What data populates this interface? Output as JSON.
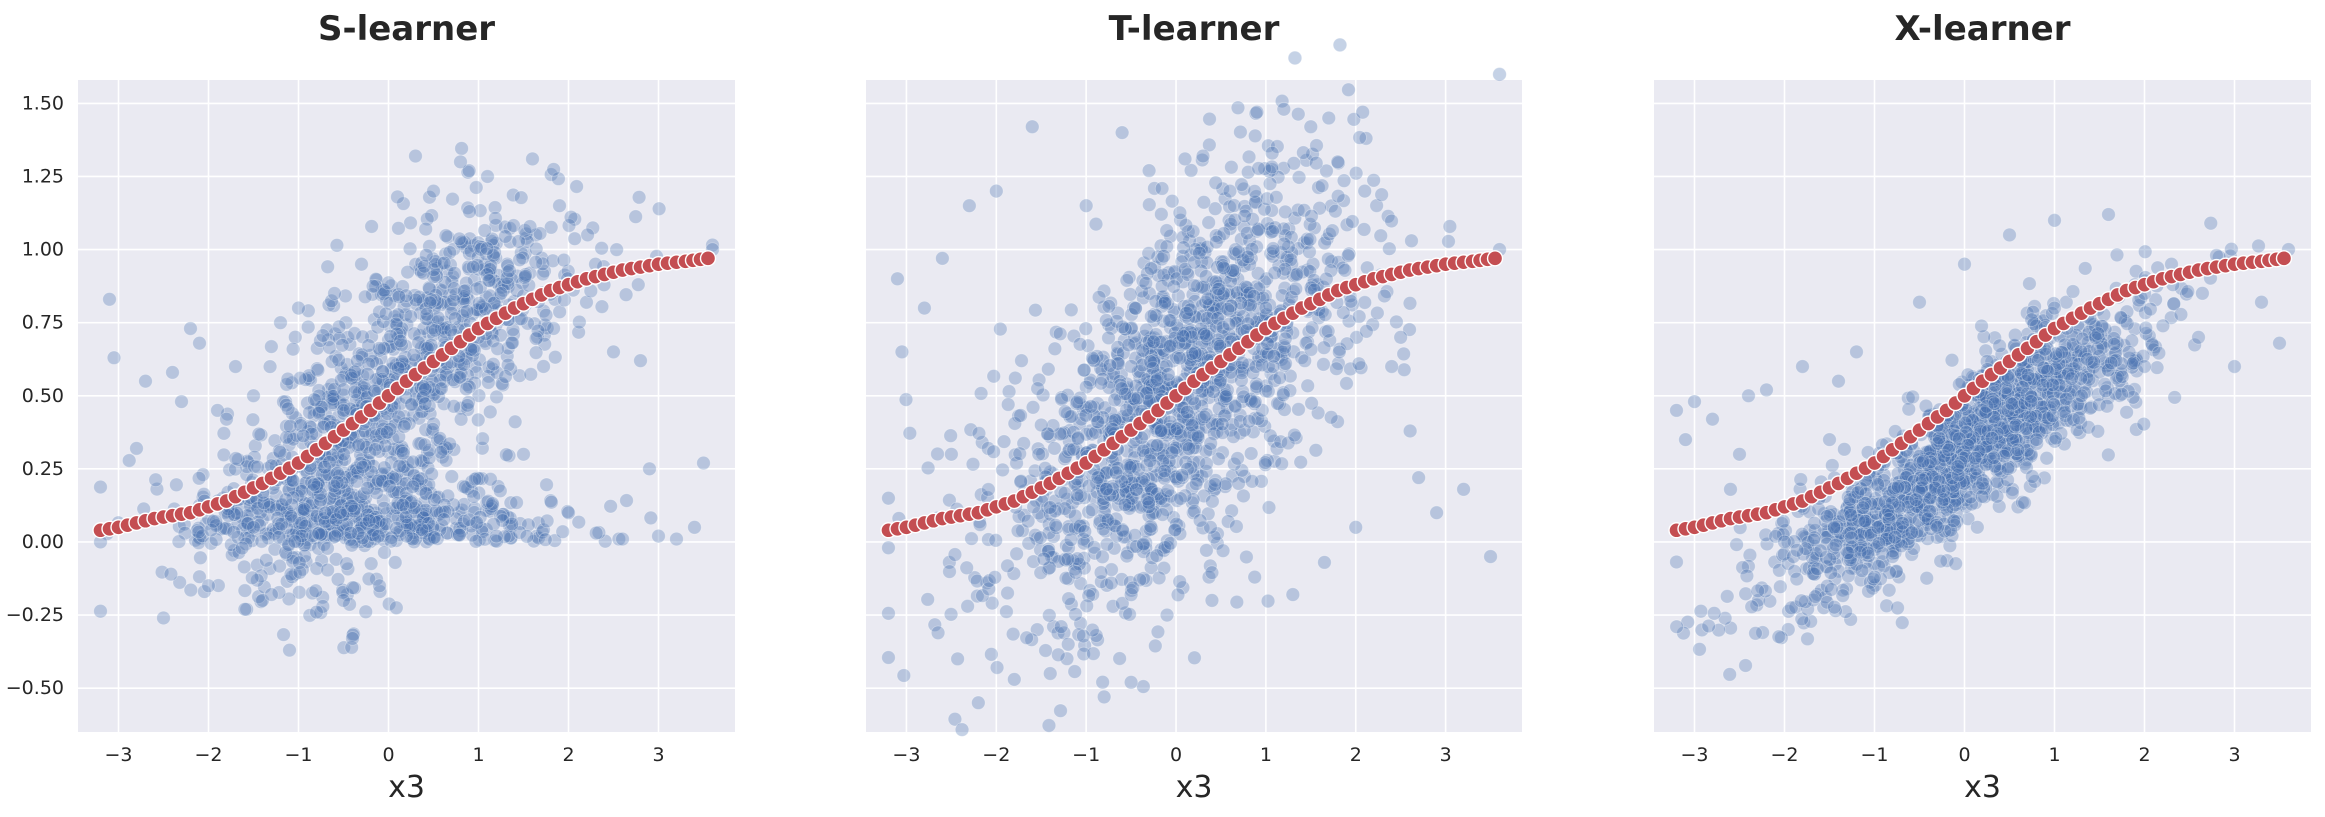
{
  "chart_data": [
    {
      "type": "scatter",
      "title": "S-learner",
      "xlabel": "x3",
      "ylabel": "",
      "xlim": [
        -3.45,
        3.85
      ],
      "ylim": [
        -0.65,
        1.58
      ],
      "xticks": [
        -3,
        -2,
        -1,
        0,
        1,
        2,
        3
      ],
      "xtick_labels": [
        "−3",
        "−2",
        "−1",
        "0",
        "1",
        "2",
        "3"
      ],
      "yticks": [
        -0.5,
        -0.25,
        0.0,
        0.25,
        0.5,
        0.75,
        1.0,
        1.25,
        1.5
      ],
      "ytick_labels": [
        "−0.50",
        "−0.25",
        "0.00",
        "0.25",
        "0.50",
        "0.75",
        "1.00",
        "1.25",
        "1.50"
      ],
      "grid": true,
      "series": [
        {
          "role": "estimated",
          "color": "#4c72b0",
          "points": [
            [
              -3.2,
              0.0
            ],
            [
              -3.1,
              0.83
            ],
            [
              -3.05,
              0.63
            ],
            [
              -2.8,
              0.32
            ],
            [
              -2.7,
              0.55
            ],
            [
              -2.5,
              -0.26
            ],
            [
              -2.4,
              0.58
            ],
            [
              -2.3,
              0.48
            ],
            [
              -2.2,
              0.73
            ],
            [
              -2.1,
              0.68
            ],
            [
              -2.0,
              -0.15
            ],
            [
              -1.9,
              0.45
            ],
            [
              -1.8,
              0.42
            ],
            [
              -1.7,
              0.6
            ],
            [
              -1.5,
              0.5
            ],
            [
              -1.4,
              -0.2
            ],
            [
              -1.3,
              -0.18
            ],
            [
              -1.2,
              0.75
            ],
            [
              -1.1,
              -0.37
            ],
            [
              -1.0,
              0.8
            ],
            [
              -0.8,
              -0.24
            ],
            [
              -0.6,
              0.85
            ],
            [
              -0.5,
              -0.2
            ],
            [
              -0.4,
              -0.33
            ],
            [
              -0.3,
              0.95
            ],
            [
              -0.1,
              -0.15
            ],
            [
              0.1,
              1.18
            ],
            [
              0.3,
              1.32
            ],
            [
              0.5,
              1.2
            ],
            [
              0.8,
              1.3
            ],
            [
              1.1,
              1.25
            ],
            [
              1.6,
              1.31
            ],
            [
              1.9,
              1.15
            ],
            [
              2.3,
              0.95
            ],
            [
              2.5,
              0.65
            ],
            [
              2.8,
              0.62
            ],
            [
              2.9,
              0.25
            ],
            [
              3.0,
              0.02
            ],
            [
              3.2,
              0.01
            ],
            [
              3.4,
              0.05
            ],
            [
              3.5,
              0.27
            ],
            [
              3.6,
              1.0
            ],
            [
              -0.5,
              0.45
            ],
            [
              0.0,
              0.5
            ],
            [
              0.5,
              0.6
            ],
            [
              1.0,
              0.7
            ],
            [
              1.5,
              0.3
            ],
            [
              2.0,
              0.1
            ],
            [
              -1.5,
              0.05
            ],
            [
              -2.2,
              0.1
            ],
            [
              0.2,
              0.02
            ],
            [
              1.2,
              0.02
            ],
            [
              2.6,
              0.01
            ]
          ]
        },
        {
          "role": "true",
          "color": "#c44e52",
          "points": [
            [
              -3.2,
              0.04
            ],
            [
              -3.0,
              0.05
            ],
            [
              -2.6,
              0.08
            ],
            [
              -2.2,
              0.1
            ],
            [
              -1.8,
              0.14
            ],
            [
              -1.4,
              0.2
            ],
            [
              -1.0,
              0.27
            ],
            [
              -0.6,
              0.36
            ],
            [
              -0.2,
              0.45
            ],
            [
              0.0,
              0.5
            ],
            [
              0.2,
              0.55
            ],
            [
              0.6,
              0.64
            ],
            [
              1.0,
              0.73
            ],
            [
              1.4,
              0.8
            ],
            [
              1.8,
              0.86
            ],
            [
              2.2,
              0.9
            ],
            [
              2.6,
              0.93
            ],
            [
              3.0,
              0.95
            ],
            [
              3.3,
              0.96
            ],
            [
              3.55,
              0.97
            ]
          ]
        }
      ]
    },
    {
      "type": "scatter",
      "title": "T-learner",
      "xlabel": "x3",
      "ylabel": "",
      "xlim": [
        -3.45,
        3.85
      ],
      "ylim": [
        -0.65,
        1.58
      ],
      "xticks": [
        -3,
        -2,
        -1,
        0,
        1,
        2,
        3
      ],
      "xtick_labels": [
        "−3",
        "−2",
        "−1",
        "0",
        "1",
        "2",
        "3"
      ],
      "yticks": [
        -0.5,
        -0.25,
        0.0,
        0.25,
        0.5,
        0.75,
        1.0,
        1.25,
        1.5
      ],
      "ytick_labels": [],
      "grid": true,
      "series": [
        {
          "role": "estimated",
          "color": "#4c72b0",
          "points": [
            [
              -3.2,
              -0.02
            ],
            [
              -3.1,
              0.9
            ],
            [
              -3.05,
              0.65
            ],
            [
              -2.8,
              0.8
            ],
            [
              -2.6,
              0.97
            ],
            [
              -2.3,
              1.15
            ],
            [
              -2.0,
              1.2
            ],
            [
              -1.8,
              -0.47
            ],
            [
              -1.6,
              1.42
            ],
            [
              -1.4,
              -0.45
            ],
            [
              -1.0,
              1.15
            ],
            [
              -0.8,
              -0.53
            ],
            [
              -0.6,
              1.4
            ],
            [
              -0.5,
              -0.48
            ],
            [
              -0.3,
              1.27
            ],
            [
              -0.1,
              -0.25
            ],
            [
              0.1,
              1.31
            ],
            [
              0.3,
              1.32
            ],
            [
              0.6,
              1.2
            ],
            [
              0.9,
              1.47
            ],
            [
              1.2,
              1.48
            ],
            [
              1.5,
              1.42
            ],
            [
              1.7,
              1.45
            ],
            [
              1.8,
              1.3
            ],
            [
              2.1,
              1.2
            ],
            [
              2.4,
              0.6
            ],
            [
              2.7,
              0.22
            ],
            [
              2.9,
              0.1
            ],
            [
              3.2,
              0.18
            ],
            [
              3.5,
              -0.05
            ],
            [
              3.6,
              1.0
            ],
            [
              -2.2,
              -0.55
            ],
            [
              -1.2,
              -0.35
            ],
            [
              0.4,
              -0.2
            ],
            [
              1.3,
              -0.18
            ],
            [
              2.0,
              0.05
            ],
            [
              -2.5,
              0.3
            ],
            [
              -1.5,
              0.4
            ],
            [
              0.0,
              0.5
            ],
            [
              1.0,
              0.8
            ],
            [
              2.5,
              0.7
            ]
          ]
        },
        {
          "role": "true",
          "color": "#c44e52",
          "points": [
            [
              -3.2,
              0.04
            ],
            [
              -3.0,
              0.05
            ],
            [
              -2.6,
              0.08
            ],
            [
              -2.2,
              0.1
            ],
            [
              -1.8,
              0.14
            ],
            [
              -1.4,
              0.2
            ],
            [
              -1.0,
              0.27
            ],
            [
              -0.6,
              0.36
            ],
            [
              -0.2,
              0.45
            ],
            [
              0.0,
              0.5
            ],
            [
              0.2,
              0.55
            ],
            [
              0.6,
              0.64
            ],
            [
              1.0,
              0.73
            ],
            [
              1.4,
              0.8
            ],
            [
              1.8,
              0.86
            ],
            [
              2.2,
              0.9
            ],
            [
              2.6,
              0.93
            ],
            [
              3.0,
              0.95
            ],
            [
              3.3,
              0.96
            ],
            [
              3.55,
              0.97
            ]
          ]
        }
      ]
    },
    {
      "type": "scatter",
      "title": "X-learner",
      "xlabel": "x3",
      "ylabel": "",
      "xlim": [
        -3.45,
        3.85
      ],
      "ylim": [
        -0.65,
        1.58
      ],
      "xticks": [
        -3,
        -2,
        -1,
        0,
        1,
        2,
        3
      ],
      "xtick_labels": [
        "−3",
        "−2",
        "−1",
        "0",
        "1",
        "2",
        "3"
      ],
      "yticks": [
        -0.5,
        -0.25,
        0.0,
        0.25,
        0.5,
        0.75,
        1.0,
        1.25,
        1.5
      ],
      "ytick_labels": [],
      "grid": true,
      "series": [
        {
          "role": "estimated",
          "color": "#4c72b0",
          "points": [
            [
              -3.2,
              0.45
            ],
            [
              -3.1,
              0.35
            ],
            [
              -3.0,
              0.48
            ],
            [
              -2.8,
              0.42
            ],
            [
              -2.6,
              0.18
            ],
            [
              -2.4,
              0.5
            ],
            [
              -2.2,
              0.52
            ],
            [
              -2.0,
              0.0
            ],
            [
              -1.8,
              0.6
            ],
            [
              -1.6,
              -0.03
            ],
            [
              -1.4,
              0.55
            ],
            [
              -1.2,
              0.65
            ],
            [
              -1.0,
              -0.12
            ],
            [
              -0.8,
              -0.05
            ],
            [
              -0.5,
              0.82
            ],
            [
              -0.3,
              0.05
            ],
            [
              0.0,
              0.95
            ],
            [
              0.2,
              0.2
            ],
            [
              0.5,
              1.05
            ],
            [
              0.8,
              0.35
            ],
            [
              1.0,
              1.1
            ],
            [
              1.3,
              0.5
            ],
            [
              1.6,
              1.12
            ],
            [
              2.0,
              0.6
            ],
            [
              2.3,
              0.95
            ],
            [
              2.6,
              0.7
            ],
            [
              2.8,
              0.98
            ],
            [
              3.0,
              0.6
            ],
            [
              3.3,
              0.82
            ],
            [
              3.5,
              0.68
            ],
            [
              3.6,
              1.0
            ],
            [
              -2.5,
              0.3
            ],
            [
              -1.5,
              0.35
            ],
            [
              0.0,
              0.5
            ],
            [
              1.0,
              0.8
            ],
            [
              2.0,
              0.85
            ]
          ]
        },
        {
          "role": "true",
          "color": "#c44e52",
          "points": [
            [
              -3.2,
              0.04
            ],
            [
              -3.0,
              0.05
            ],
            [
              -2.6,
              0.08
            ],
            [
              -2.2,
              0.1
            ],
            [
              -1.8,
              0.14
            ],
            [
              -1.4,
              0.2
            ],
            [
              -1.0,
              0.27
            ],
            [
              -0.6,
              0.36
            ],
            [
              -0.2,
              0.45
            ],
            [
              0.0,
              0.5
            ],
            [
              0.2,
              0.55
            ],
            [
              0.6,
              0.64
            ],
            [
              1.0,
              0.73
            ],
            [
              1.4,
              0.8
            ],
            [
              1.8,
              0.86
            ],
            [
              2.2,
              0.9
            ],
            [
              2.6,
              0.93
            ],
            [
              3.0,
              0.95
            ],
            [
              3.3,
              0.96
            ],
            [
              3.55,
              0.97
            ]
          ]
        }
      ]
    }
  ]
}
